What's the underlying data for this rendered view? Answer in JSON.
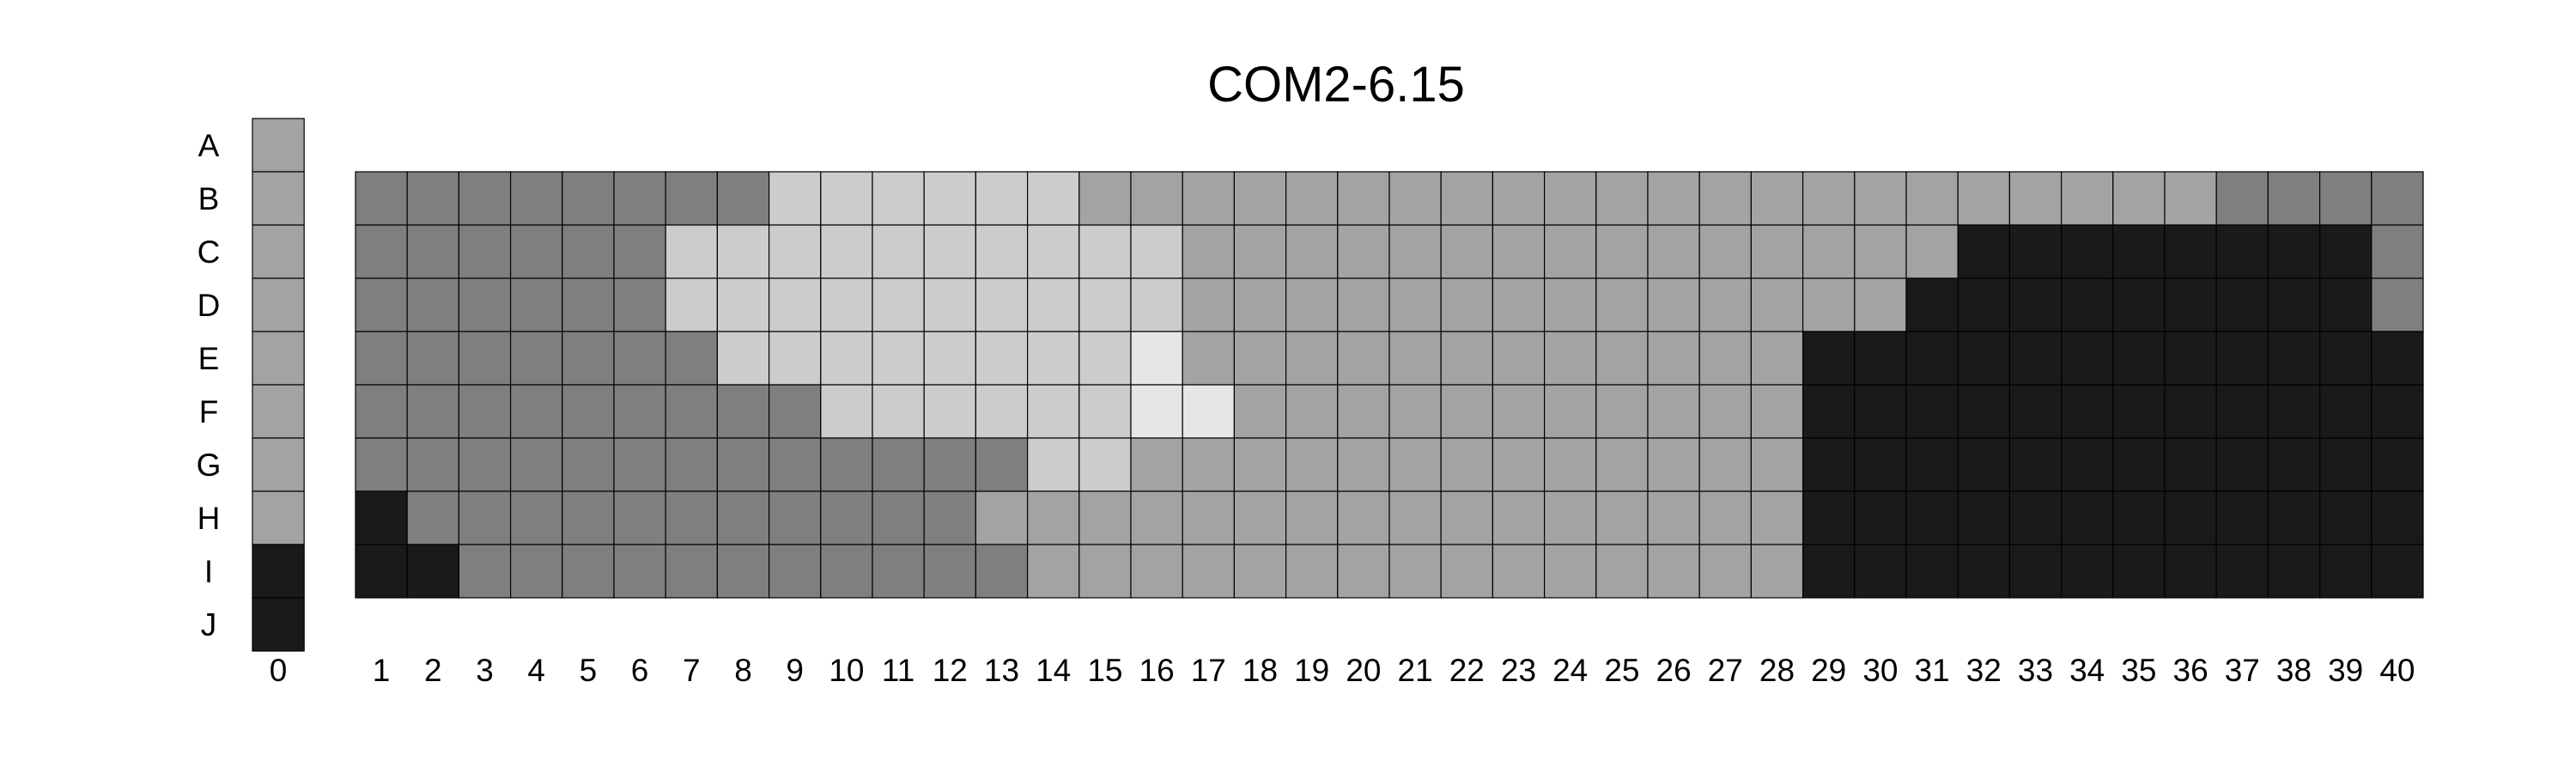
{
  "chart_data": {
    "type": "heatmap",
    "title": "COM2-6.15",
    "row_labels": [
      "A",
      "B",
      "C",
      "D",
      "E",
      "F",
      "G",
      "H",
      "I",
      "J"
    ],
    "column_labels": [
      "0",
      "1",
      "2",
      "3",
      "4",
      "5",
      "6",
      "7",
      "8",
      "9",
      "10",
      "11",
      "12",
      "13",
      "14",
      "15",
      "16",
      "17",
      "18",
      "19",
      "20",
      "21",
      "22",
      "23",
      "24",
      "25",
      "26",
      "27",
      "28",
      "29",
      "30",
      "31",
      "32",
      "33",
      "34",
      "35",
      "36",
      "37",
      "38",
      "39",
      "40"
    ],
    "value_colors": {
      "0": "#1a1a1a",
      "1": "#7f7f7f",
      "2": "#a3a3a3",
      "3": "#cccccc",
      "4": "#e6e6e6"
    },
    "column_0": {
      "rows": [
        "A",
        "B",
        "C",
        "D",
        "E",
        "F",
        "G",
        "H",
        "I",
        "J"
      ],
      "values": [
        2,
        2,
        2,
        2,
        2,
        2,
        2,
        2,
        0,
        0
      ]
    },
    "grid": {
      "rows": [
        "B",
        "C",
        "D",
        "E",
        "F",
        "G",
        "H",
        "I"
      ],
      "columns": [
        "1",
        "2",
        "3",
        "4",
        "5",
        "6",
        "7",
        "8",
        "9",
        "10",
        "11",
        "12",
        "13",
        "14",
        "15",
        "16",
        "17",
        "18",
        "19",
        "20",
        "21",
        "22",
        "23",
        "24",
        "25",
        "26",
        "27",
        "28",
        "29",
        "30",
        "31",
        "32",
        "33",
        "34",
        "35",
        "36",
        "37",
        "38",
        "39",
        "40"
      ],
      "values": [
        [
          1,
          1,
          1,
          1,
          1,
          1,
          1,
          1,
          3,
          3,
          3,
          3,
          3,
          3,
          2,
          2,
          2,
          2,
          2,
          2,
          2,
          2,
          2,
          2,
          2,
          2,
          2,
          2,
          2,
          2,
          2,
          2,
          2,
          2,
          2,
          2,
          1,
          1,
          1,
          1
        ],
        [
          1,
          1,
          1,
          1,
          1,
          1,
          3,
          3,
          3,
          3,
          3,
          3,
          3,
          3,
          3,
          3,
          2,
          2,
          2,
          2,
          2,
          2,
          2,
          2,
          2,
          2,
          2,
          2,
          2,
          2,
          2,
          0,
          0,
          0,
          0,
          0,
          0,
          0,
          0,
          1
        ],
        [
          1,
          1,
          1,
          1,
          1,
          1,
          3,
          3,
          3,
          3,
          3,
          3,
          3,
          3,
          3,
          3,
          2,
          2,
          2,
          2,
          2,
          2,
          2,
          2,
          2,
          2,
          2,
          2,
          2,
          2,
          0,
          0,
          0,
          0,
          0,
          0,
          0,
          0,
          0,
          1
        ],
        [
          1,
          1,
          1,
          1,
          1,
          1,
          1,
          3,
          3,
          3,
          3,
          3,
          3,
          3,
          3,
          4,
          2,
          2,
          2,
          2,
          2,
          2,
          2,
          2,
          2,
          2,
          2,
          2,
          0,
          0,
          0,
          0,
          0,
          0,
          0,
          0,
          0,
          0,
          0,
          0
        ],
        [
          1,
          1,
          1,
          1,
          1,
          1,
          1,
          1,
          1,
          3,
          3,
          3,
          3,
          3,
          3,
          4,
          4,
          2,
          2,
          2,
          2,
          2,
          2,
          2,
          2,
          2,
          2,
          2,
          0,
          0,
          0,
          0,
          0,
          0,
          0,
          0,
          0,
          0,
          0,
          0
        ],
        [
          1,
          1,
          1,
          1,
          1,
          1,
          1,
          1,
          1,
          1,
          1,
          1,
          1,
          3,
          3,
          2,
          2,
          2,
          2,
          2,
          2,
          2,
          2,
          2,
          2,
          2,
          2,
          2,
          0,
          0,
          0,
          0,
          0,
          0,
          0,
          0,
          0,
          0,
          0,
          0
        ],
        [
          0,
          1,
          1,
          1,
          1,
          1,
          1,
          1,
          1,
          1,
          1,
          1,
          2,
          2,
          2,
          2,
          2,
          2,
          2,
          2,
          2,
          2,
          2,
          2,
          2,
          2,
          2,
          2,
          0,
          0,
          0,
          0,
          0,
          0,
          0,
          0,
          0,
          0,
          0,
          0
        ],
        [
          0,
          0,
          1,
          1,
          1,
          1,
          1,
          1,
          1,
          1,
          1,
          1,
          1,
          2,
          2,
          2,
          2,
          2,
          2,
          2,
          2,
          2,
          2,
          2,
          2,
          2,
          2,
          2,
          0,
          0,
          0,
          0,
          0,
          0,
          0,
          0,
          0,
          0,
          0,
          0
        ]
      ]
    }
  }
}
